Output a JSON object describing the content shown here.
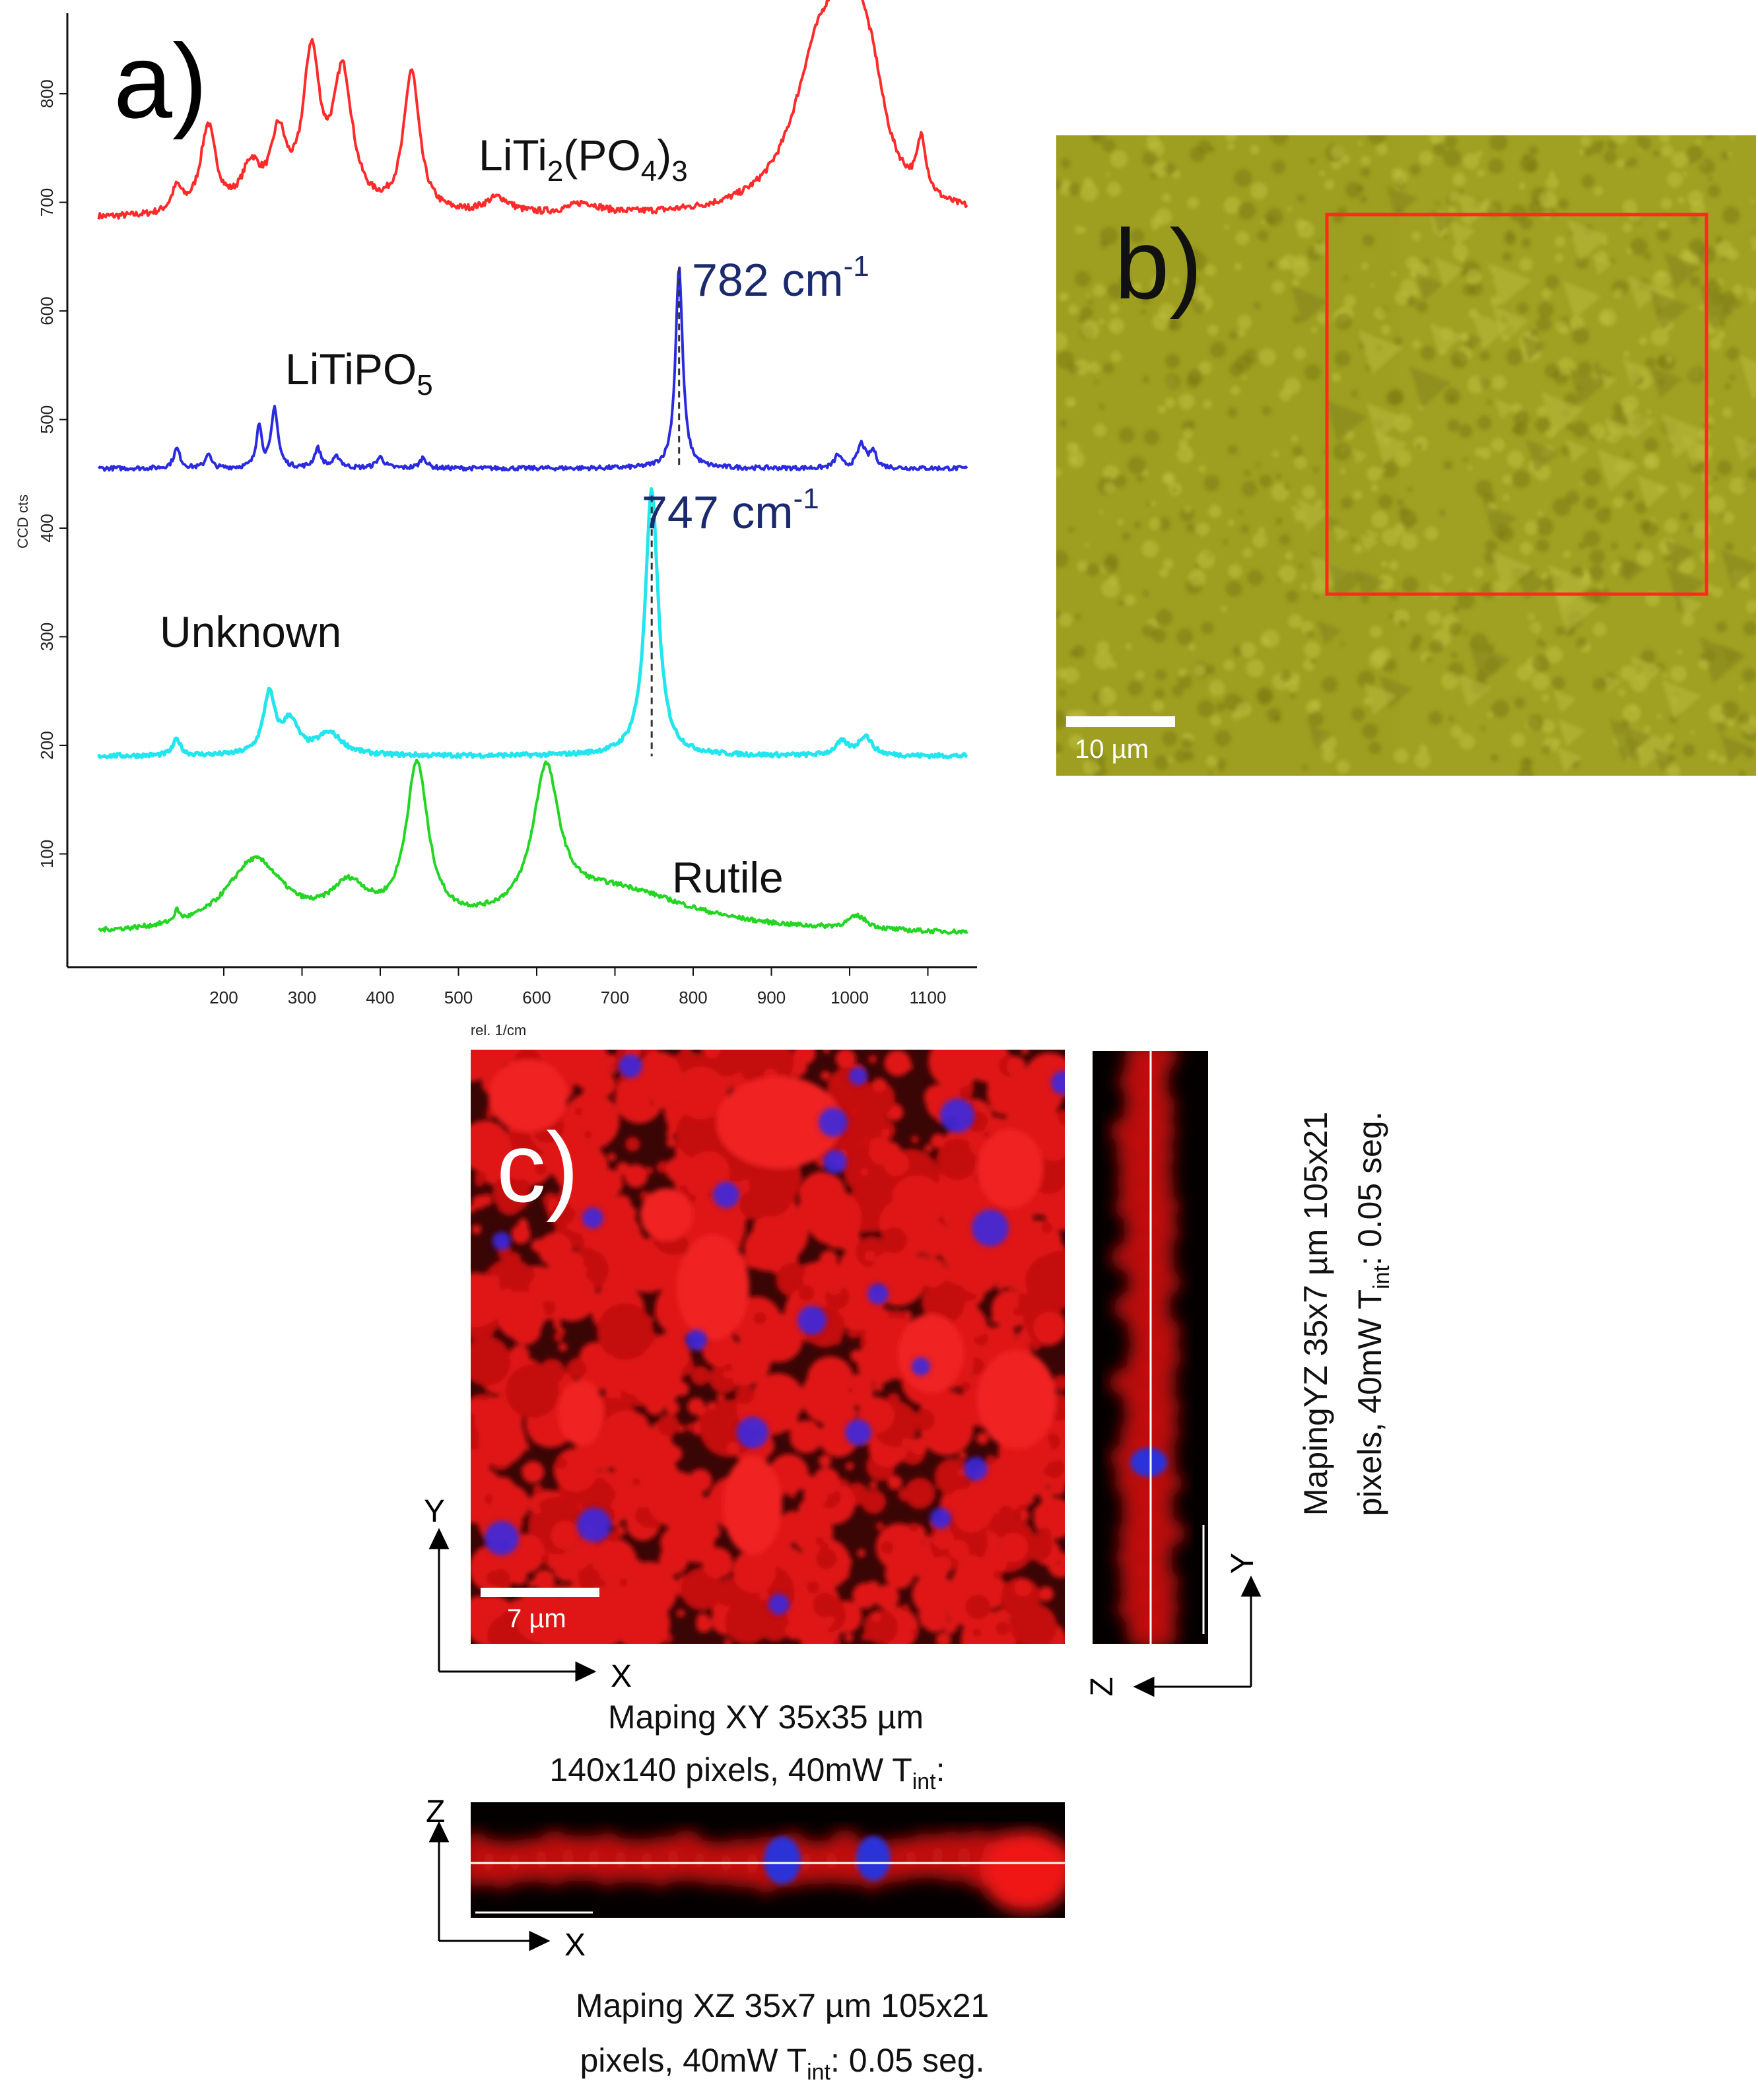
{
  "panel_a": {
    "letter": "a)",
    "chart_data": {
      "type": "line",
      "xlabel": "rel. 1/cm",
      "ylabel": "CCD cts",
      "xlim": [
        0,
        1150
      ],
      "ylim": [
        -20,
        870
      ],
      "x_ticks": [
        200,
        300,
        400,
        500,
        600,
        700,
        800,
        900,
        1000,
        1100
      ],
      "y_ticks": [
        100,
        200,
        300,
        400,
        500,
        600,
        700,
        800
      ],
      "series": [
        {
          "name": "LiTi2(PO4)3",
          "label_main": "LiTi",
          "label_sub1": "2",
          "label_mid": "(PO",
          "label_sub2": "4",
          "label_end": ")",
          "label_sub3": "3",
          "color": "#ff2a2a",
          "baseline": 685,
          "peaks": [
            [
              140,
              22,
              8
            ],
            [
              180,
              80,
              12
            ],
            [
              235,
              40,
              15
            ],
            [
              270,
              65,
              12
            ],
            [
              312,
              140,
              13
            ],
            [
              352,
              125,
              15
            ],
            [
              440,
              130,
              12
            ],
            [
              550,
              15,
              20
            ],
            [
              660,
              10,
              25
            ],
            [
              960,
              130,
              40
            ],
            [
              1000,
              170,
              25
            ],
            [
              1030,
              60,
              20
            ],
            [
              1092,
              50,
              7
            ]
          ]
        },
        {
          "name": "LiTiPO5",
          "label_main": "LiTiPO",
          "label_sub1": "5",
          "color": "#2a2ae0",
          "baseline": 455,
          "peaks": [
            [
              140,
              18,
              5
            ],
            [
              180,
              14,
              4
            ],
            [
              245,
              40,
              4
            ],
            [
              265,
              55,
              5
            ],
            [
              320,
              18,
              5
            ],
            [
              345,
              10,
              6
            ],
            [
              400,
              10,
              6
            ],
            [
              455,
              10,
              5
            ],
            [
              782,
              185,
              5.5
            ],
            [
              985,
              12,
              5
            ],
            [
              1015,
              22,
              6
            ],
            [
              1030,
              15,
              5
            ]
          ]
        },
        {
          "name": "Unknown",
          "color": "#22e5ee",
          "baseline": 190,
          "peaks": [
            [
              140,
              15,
              6
            ],
            [
              258,
              55,
              9
            ],
            [
              285,
              30,
              12
            ],
            [
              335,
              20,
              20
            ],
            [
              747,
              245,
              10
            ],
            [
              990,
              12,
              10
            ],
            [
              1020,
              18,
              10
            ]
          ]
        },
        {
          "name": "Rutile",
          "color": "#22d622",
          "baseline": 25,
          "peaks": [
            [
              140,
              10,
              4
            ],
            [
              240,
              65,
              45
            ],
            [
              360,
              35,
              30
            ],
            [
              447,
              145,
              17
            ],
            [
              612,
              130,
              20
            ],
            [
              700,
              40,
              120
            ],
            [
              1010,
              12,
              15
            ]
          ]
        }
      ],
      "annotations": [
        {
          "x": 782,
          "text": "782 cm",
          "sup": "-1",
          "color": "#1a2a6c"
        },
        {
          "x": 747,
          "text": "747 cm",
          "sup": "-1",
          "color": "#1a2a6c"
        }
      ]
    }
  },
  "panel_b": {
    "letter": "b)",
    "scale_bar": "10 µm"
  },
  "panel_c": {
    "letter": "c)",
    "scale_bar": "7 µm",
    "axis_x": "X",
    "axis_y": "Y",
    "axis_z": "Z",
    "xy_caption_1": "Maping XY 35x35 µm",
    "xy_caption_2": "140x140 pixels, 40mW  T",
    "xy_caption_2_sub": "int",
    "xy_caption_2_end": ":",
    "xz_caption_1": "Maping XZ 35x7 µm  105x21",
    "xz_caption_2": "pixels, 40mW  T",
    "xz_caption_2_sub": "int",
    "xz_caption_2_end": ": 0.05 seg.",
    "yz_caption_1": "MapingYZ  35x7 µm  105x21",
    "yz_caption_2": "pixels, 40mW  T",
    "yz_caption_2_sub": "int",
    "yz_caption_2_end": ": 0.05 seg."
  }
}
